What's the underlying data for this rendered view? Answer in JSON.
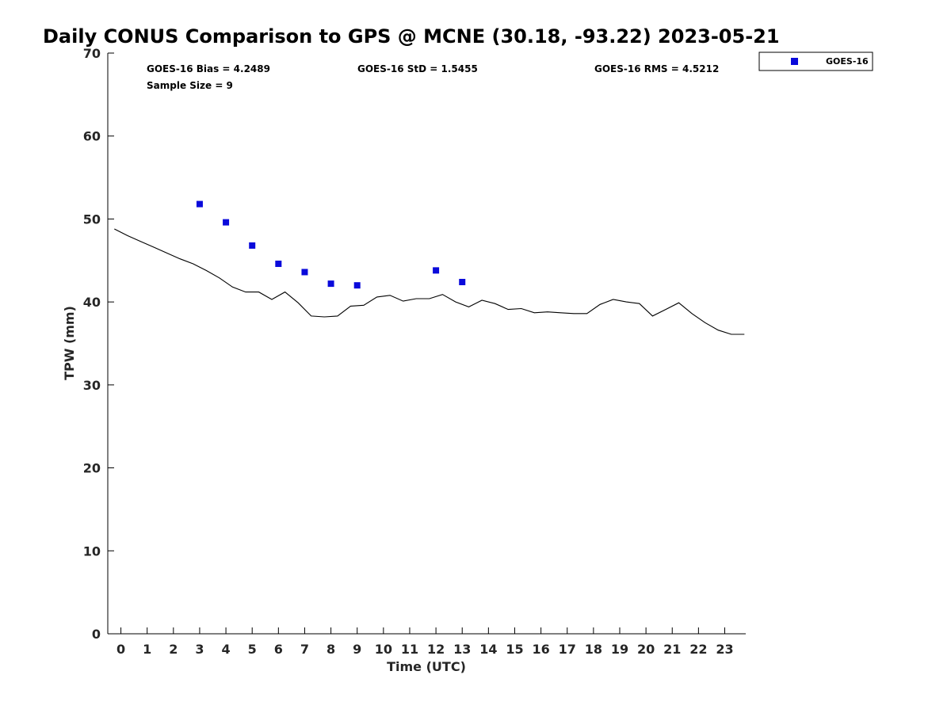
{
  "chart_data": {
    "type": "line+scatter",
    "title": "Daily CONUS Comparison to GPS @ MCNE (30.18, -93.22) 2023-05-21",
    "xlabel": "Time (UTC)",
    "ylabel": "TPW (mm)",
    "xlim": [
      -0.5,
      23.8
    ],
    "ylim": [
      0,
      70
    ],
    "x_ticks": [
      0,
      1,
      2,
      3,
      4,
      5,
      6,
      7,
      8,
      9,
      10,
      11,
      12,
      13,
      14,
      15,
      16,
      17,
      18,
      19,
      20,
      21,
      22,
      23
    ],
    "y_ticks": [
      0,
      10,
      20,
      30,
      40,
      50,
      60,
      70
    ],
    "grid": false,
    "legend": {
      "position": "top-right, outside",
      "entries": [
        "GOES-16"
      ]
    },
    "stats": {
      "bias": "GOES-16 Bias = 4.2489",
      "std": "GOES-16 StD = 1.5455",
      "rms": "GOES-16 RMS = 4.5212",
      "sample_size": "Sample Size = 9"
    },
    "series": [
      {
        "kind": "line",
        "color": "#000000",
        "x": [
          -0.25,
          0.25,
          0.75,
          1.25,
          1.75,
          2.25,
          2.75,
          3.25,
          3.75,
          4.25,
          4.75,
          5.25,
          5.75,
          6.25,
          6.75,
          7.25,
          7.75,
          8.25,
          8.75,
          9.25,
          9.75,
          10.25,
          10.75,
          11.25,
          11.75,
          12.25,
          12.75,
          13.25,
          13.75,
          14.25,
          14.75,
          15.25,
          15.75,
          16.25,
          16.75,
          17.25,
          17.75,
          18.25,
          18.75,
          19.25,
          19.75,
          20.25,
          20.75,
          21.25,
          21.75,
          22.25,
          22.75,
          23.25,
          23.75
        ],
        "y": [
          48.8,
          48.0,
          47.3,
          46.6,
          45.9,
          45.2,
          44.6,
          43.8,
          42.9,
          41.8,
          41.2,
          41.2,
          40.3,
          41.2,
          39.9,
          38.3,
          38.2,
          38.3,
          39.5,
          39.6,
          40.6,
          40.8,
          40.1,
          40.4,
          40.4,
          40.9,
          40.0,
          39.4,
          40.2,
          39.8,
          39.1,
          39.2,
          38.7,
          38.8,
          38.7,
          38.6,
          38.6,
          39.7,
          40.3,
          40.0,
          39.8,
          38.3,
          39.1,
          39.9,
          38.6,
          37.5,
          36.6,
          36.1,
          36.1
        ]
      },
      {
        "kind": "scatter",
        "name": "GOES-16",
        "marker": "square",
        "color": "#0a0adb",
        "x": [
          3.0,
          4.0,
          5.0,
          6.0,
          7.0,
          8.0,
          9.0,
          12.0,
          13.0
        ],
        "y": [
          51.8,
          49.6,
          46.8,
          44.6,
          43.6,
          42.2,
          42.0,
          43.8,
          42.4
        ]
      }
    ]
  }
}
